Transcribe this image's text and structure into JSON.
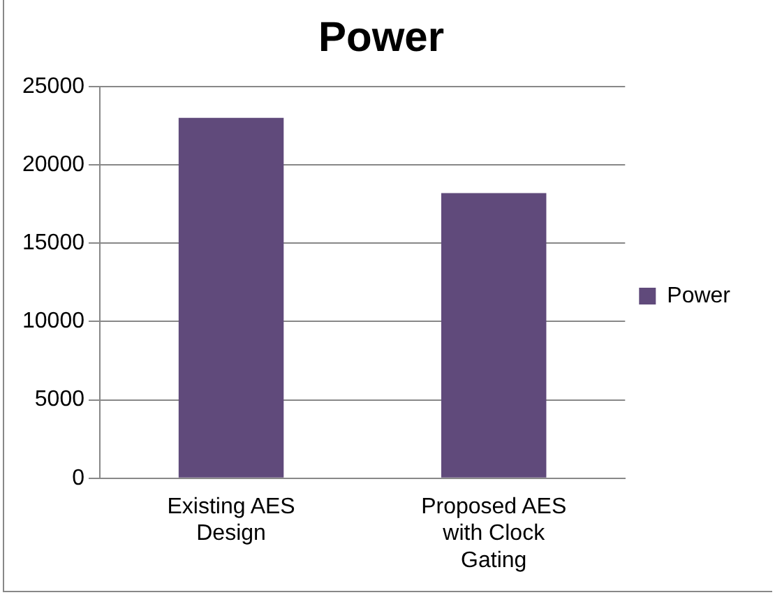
{
  "chart_data": {
    "type": "bar",
    "title": "Power",
    "categories": [
      "Existing AES Design",
      "Proposed AES with Clock Gating"
    ],
    "series": [
      {
        "name": "Power",
        "color": "#604a7b",
        "values": [
          23000,
          18200
        ]
      }
    ],
    "ylim": [
      0,
      25000
    ],
    "yticks": [
      0,
      5000,
      10000,
      15000,
      20000,
      25000
    ],
    "grid": "y",
    "legend": "right"
  }
}
